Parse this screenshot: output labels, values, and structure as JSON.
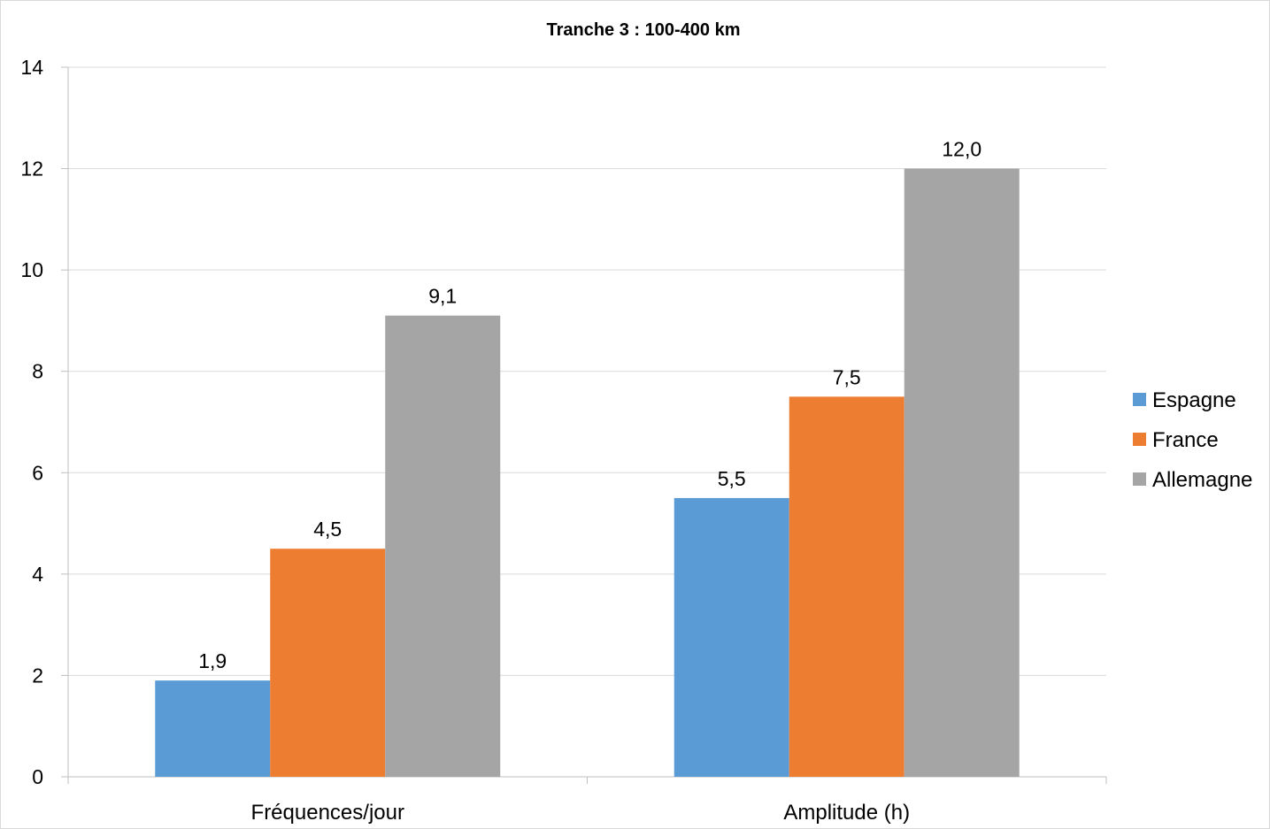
{
  "chart_data": {
    "type": "bar",
    "title": "Tranche 3 : 100-400 km",
    "categories": [
      "Fréquences/jour",
      "Amplitude (h)"
    ],
    "series": [
      {
        "name": "Espagne",
        "values": [
          1.9,
          5.5
        ],
        "labels": [
          "1,9",
          "5,5"
        ],
        "color": "#5b9bd5"
      },
      {
        "name": "France",
        "values": [
          4.5,
          7.5
        ],
        "labels": [
          "4,5",
          "7,5"
        ],
        "color": "#ed7d31"
      },
      {
        "name": "Allemagne",
        "values": [
          9.1,
          12.0
        ],
        "labels": [
          "9,1",
          "12,0"
        ],
        "color": "#a5a5a5"
      }
    ],
    "ylim": [
      0,
      14
    ],
    "yticks": [
      0,
      2,
      4,
      6,
      8,
      10,
      12,
      14
    ],
    "xlabel": "",
    "ylabel": "",
    "grid": true,
    "gridColor": "#d9d9d9",
    "axisColor": "#bfbfbf",
    "legend_position": "right"
  }
}
